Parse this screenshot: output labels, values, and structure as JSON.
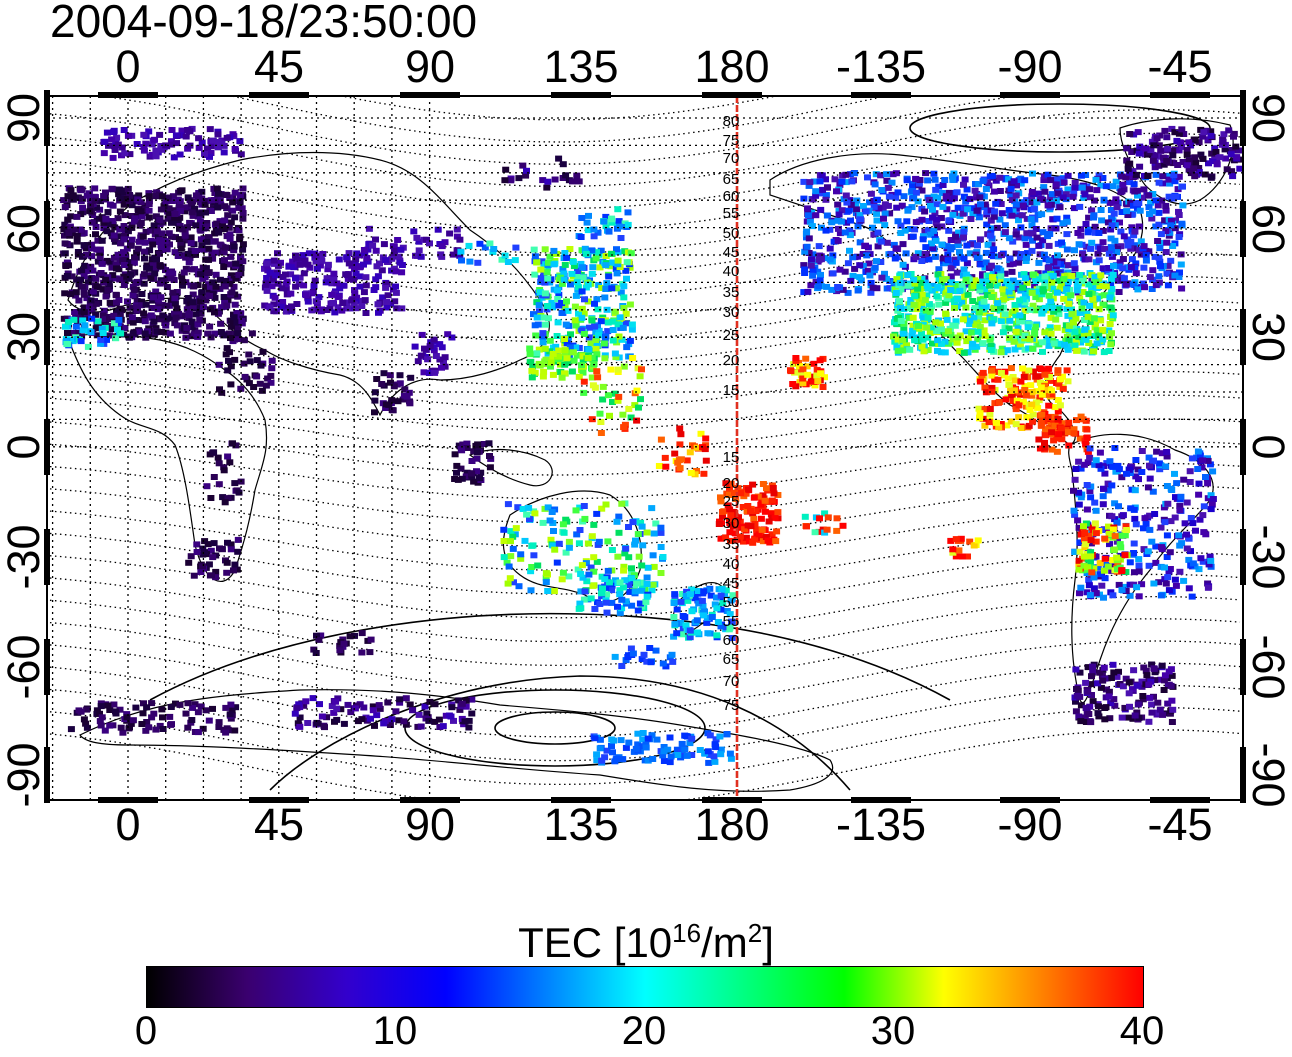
{
  "title": "2004-09-18/23:50:00",
  "lon_ticks": [
    "0",
    "45",
    "90",
    "135",
    "180",
    "-135",
    "-90",
    "-45"
  ],
  "lat_ticks": [
    "90",
    "60",
    "30",
    "0",
    "-30",
    "-60",
    "-90"
  ],
  "midnight_labels": [
    "80",
    "75",
    "70",
    "65",
    "60",
    "55",
    "50",
    "45",
    "40",
    "35",
    "30",
    "25",
    "20",
    "15",
    "15",
    "20",
    "25",
    "30",
    "35",
    "40",
    "45",
    "50",
    "55",
    "60",
    "65",
    "70",
    "75"
  ],
  "colorbar": {
    "label_prefix": "TEC  [10",
    "label_exp1": "16",
    "label_mid": "/m",
    "label_exp2": "2",
    "label_suffix": "]",
    "ticks": [
      "0",
      "10",
      "20",
      "30",
      "40"
    ],
    "range": [
      0,
      40
    ],
    "stops": [
      "#000000",
      "#3a006e",
      "#3300cc",
      "#0000ff",
      "#0080ff",
      "#00ffff",
      "#00ff80",
      "#00ff00",
      "#ffff00",
      "#ff8000",
      "#ff0000"
    ]
  },
  "colors": {
    "terminator_line": "#e03020",
    "grid": "#000000"
  }
}
